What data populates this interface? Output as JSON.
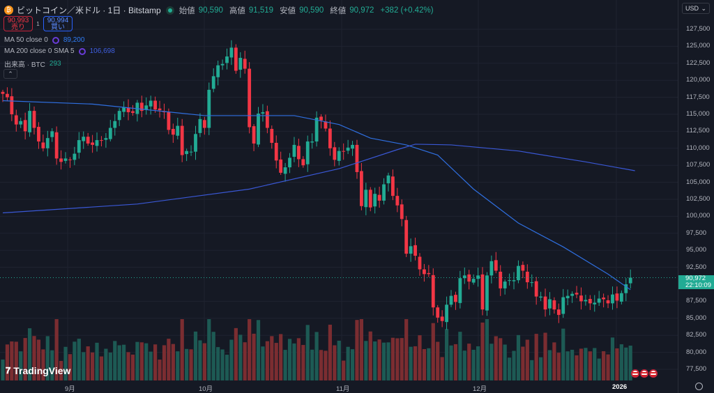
{
  "header": {
    "symbol": "ビットコイン／米ドル · 1日 · Bitstamp",
    "open_label": "始値",
    "open": "90,590",
    "high_label": "高値",
    "high": "91,519",
    "low_label": "安値",
    "low": "90,590",
    "close_label": "終値",
    "close": "90,972",
    "change": "+382 (+0.42%)"
  },
  "trade": {
    "sell_price": "90,993",
    "sell_label": "売り",
    "spread": "1",
    "buy_price": "90,994",
    "buy_label": "買い"
  },
  "indicators": [
    {
      "label": "MA 50 close 0",
      "value": "89,200",
      "color": "#2962ff"
    },
    {
      "label": "MA 200 close 0 SMA 5",
      "value": "106,698",
      "color": "#3355dd"
    },
    {
      "label": "出来高 · BTC",
      "value": "293",
      "color": "#22ab94"
    }
  ],
  "axis": {
    "currency": "USD",
    "price_labels": [
      "127,500",
      "125,000",
      "122,500",
      "120,000",
      "117,500",
      "115,000",
      "112,500",
      "110,000",
      "107,500",
      "105,000",
      "102,500",
      "100,000",
      "97,500",
      "95,000",
      "92,500",
      "87,500",
      "85,000",
      "82,500",
      "80,000",
      "77,500"
    ],
    "current_price": "90,972",
    "countdown": "22:10:09",
    "time_labels": [
      "9月",
      "10月",
      "11月",
      "12月",
      "2026"
    ]
  },
  "branding": {
    "logo": "TradingView"
  },
  "chart_data": {
    "type": "candlestick",
    "ylim": [
      76000,
      129000
    ],
    "up_color": "#22ab94",
    "down_color": "#f23645",
    "closes": [
      118000,
      117500,
      115000,
      113500,
      114000,
      112500,
      115500,
      113000,
      111000,
      110000,
      111500,
      112500,
      108500,
      108000,
      108500,
      108300,
      109200,
      111200,
      111700,
      110700,
      110500,
      111200,
      111100,
      111500,
      113000,
      114000,
      115500,
      116000,
      115300,
      115200,
      116700,
      115500,
      116300,
      117000,
      115700,
      115600,
      115300,
      112700,
      112000,
      113300,
      109000,
      109600,
      109500,
      112100,
      114300,
      113000,
      118600,
      120600,
      122200,
      122400,
      123500,
      124800,
      121400,
      123300,
      121700,
      113100,
      110700,
      115100,
      115300,
      113000,
      110800,
      108200,
      106400,
      107200,
      108600,
      110500,
      108400,
      107500,
      111000,
      111000,
      114500,
      114100,
      112900,
      110000,
      108300,
      109600,
      109500,
      110100,
      110500,
      106500,
      101500,
      103900,
      101300,
      103300,
      102300,
      104700,
      106000,
      103000,
      101600,
      99600,
      94500,
      95600,
      94200,
      92200,
      91500,
      91500,
      86600,
      85100,
      84600,
      87000,
      88300,
      87400,
      90900,
      91300,
      90400,
      90800,
      91300,
      86300,
      91300,
      93400,
      92000,
      89400,
      90400,
      90600,
      90600,
      92700,
      92000,
      90300,
      90300,
      88200,
      88200,
      86300,
      87800,
      86300,
      85500,
      88100,
      88300,
      88600,
      88500,
      87500,
      87700,
      87200,
      87300,
      87900,
      87800,
      87200,
      88500,
      87600,
      88700,
      90000,
      90972
    ],
    "ma50_points": [
      [
        0,
        117000
      ],
      [
        20,
        116500
      ],
      [
        45,
        114800
      ],
      [
        65,
        114800
      ],
      [
        75,
        113500
      ],
      [
        82,
        111500
      ],
      [
        90,
        110500
      ],
      [
        97,
        109000
      ],
      [
        105,
        104000
      ],
      [
        115,
        99000
      ],
      [
        125,
        95500
      ],
      [
        135,
        91500
      ],
      [
        140,
        89200
      ]
    ],
    "ma200_points": [
      [
        0,
        100500
      ],
      [
        30,
        101800
      ],
      [
        55,
        104000
      ],
      [
        75,
        107000
      ],
      [
        88,
        109800
      ],
      [
        92,
        110600
      ],
      [
        100,
        110500
      ],
      [
        115,
        109600
      ],
      [
        130,
        108000
      ],
      [
        141,
        106698
      ]
    ]
  }
}
